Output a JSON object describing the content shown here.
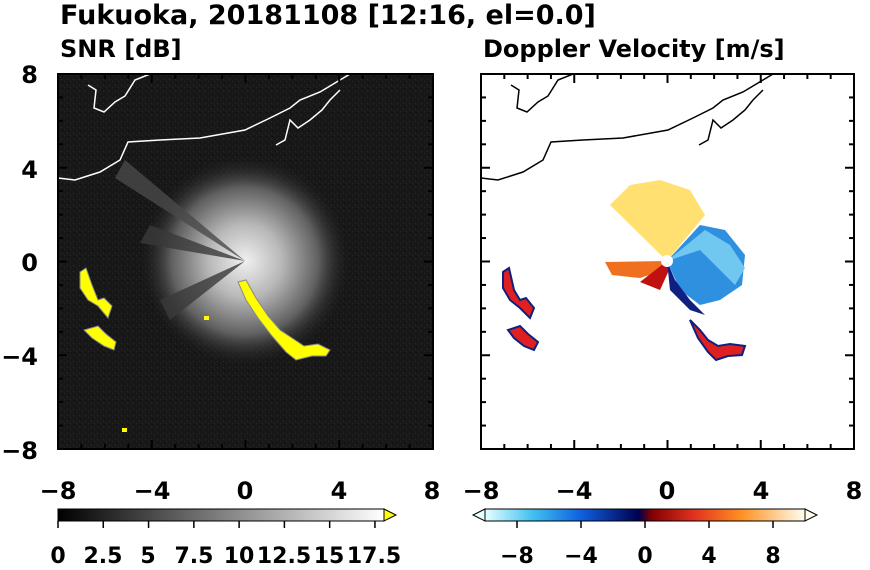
{
  "title": "Fukuoka, 20181108 [12:16, el=0.0]",
  "chart_data": [
    {
      "type": "heatmap",
      "title": "SNR [dB]",
      "xlim": [
        -8,
        8
      ],
      "ylim": [
        -8,
        8
      ],
      "xticks": [
        "−8",
        "−4",
        "0",
        "4",
        "8"
      ],
      "yticks": [
        "8",
        "4",
        "0",
        "−4",
        "−8"
      ],
      "colorbar": {
        "ticks": [
          "0",
          "2.5",
          "5",
          "7.5",
          "10",
          "12.5",
          "15",
          "17.5"
        ],
        "range": [
          0,
          18
        ],
        "extend": "max",
        "colors": [
          "#000000",
          "#ffffff",
          "#ffff00"
        ]
      },
      "features": [
        {
          "name": "radar-fan",
          "description_values": {
            "center": [
              0,
              0
            ],
            "radius": 4
          }
        },
        {
          "name": "echo-band-west",
          "points": [
            [
              -7.0,
              -0.5
            ],
            [
              -6.7,
              -1.6
            ],
            [
              -6.1,
              -2.0
            ],
            [
              -5.7,
              -2.2
            ],
            [
              -6.6,
              -3.1
            ],
            [
              -5.8,
              -3.6
            ]
          ]
        },
        {
          "name": "echo-band-southeast",
          "points": [
            [
              0.2,
              -0.9
            ],
            [
              0.9,
              -1.7
            ],
            [
              1.8,
              -2.8
            ],
            [
              2.3,
              -3.5
            ],
            [
              3.1,
              -3.9
            ],
            [
              3.6,
              -3.8
            ]
          ]
        }
      ]
    },
    {
      "type": "heatmap",
      "title": "Doppler Velocity [m/s]",
      "xlim": [
        -8,
        8
      ],
      "ylim": [
        -8,
        8
      ],
      "xticks": [
        "−8",
        "−4",
        "0",
        "4",
        "8"
      ],
      "yticks": [],
      "colorbar": {
        "ticks": [
          "−8",
          "−4",
          "0",
          "4",
          "8"
        ],
        "range": [
          -10,
          10
        ],
        "extend": "both",
        "colors": [
          "#e6ffff",
          "#40c0f0",
          "#1040c0",
          "#000060",
          "#800000",
          "#e02020",
          "#ff8020",
          "#ffe060",
          "#ffffe0"
        ]
      }
    }
  ]
}
